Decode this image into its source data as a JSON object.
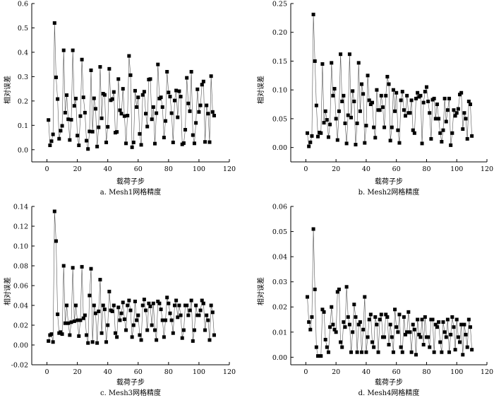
{
  "figure": {
    "xlabel": "载荷子步",
    "ylabel": "相对误差"
  },
  "chart_data": [
    {
      "type": "line",
      "title": "a. Mesh1网格精度",
      "xlabel": "载荷子步",
      "ylabel": "相对误差",
      "xlim": [
        -10,
        120
      ],
      "ylim": [
        -0.05,
        0.6
      ],
      "xticks": [
        0,
        20,
        40,
        60,
        80,
        100,
        120
      ],
      "yticks": [
        0.0,
        0.1,
        0.2,
        0.3,
        0.4,
        0.5,
        0.6
      ],
      "ytick_labels": [
        "0.0",
        "0.1",
        "0.2",
        "0.3",
        "0.4",
        "0.5",
        "0.6"
      ],
      "series": [
        {
          "name": "Mesh1",
          "x": [
            1,
            2,
            3,
            4,
            5,
            6,
            7,
            8,
            9,
            10,
            11,
            12,
            13,
            14,
            15,
            16,
            17,
            18,
            19,
            20,
            21,
            22,
            23,
            24,
            25,
            26,
            27,
            28,
            29,
            30,
            31,
            32,
            33,
            34,
            35,
            36,
            37,
            38,
            39,
            40,
            41,
            42,
            43,
            44,
            45,
            46,
            47,
            48,
            49,
            50,
            51,
            52,
            53,
            54,
            55,
            56,
            57,
            58,
            59,
            60,
            61,
            62,
            63,
            64,
            65,
            66,
            67,
            68,
            69,
            70,
            71,
            72,
            73,
            74,
            75,
            76,
            77,
            78,
            79,
            80,
            81,
            82,
            83,
            84,
            85,
            86,
            87,
            88,
            89,
            90,
            91,
            92,
            93,
            94,
            95,
            96,
            97,
            98,
            99,
            100,
            101,
            102,
            103,
            104,
            105,
            106,
            107,
            108,
            109,
            110
          ],
          "values": [
            0.122,
            0.018,
            0.035,
            0.063,
            0.52,
            0.297,
            0.208,
            0.045,
            0.078,
            0.098,
            0.408,
            0.152,
            0.224,
            0.125,
            0.04,
            0.123,
            0.408,
            0.18,
            0.21,
            0.058,
            0.018,
            0.138,
            0.37,
            0.215,
            0.152,
            0.037,
            0.003,
            0.075,
            0.326,
            0.074,
            0.211,
            0.168,
            0.013,
            0.092,
            0.34,
            0.129,
            0.23,
            0.225,
            0.03,
            0.094,
            0.332,
            0.203,
            0.208,
            0.237,
            0.07,
            0.073,
            0.29,
            0.162,
            0.148,
            0.25,
            0.138,
            0.026,
            0.14,
            0.385,
            0.306,
            0.01,
            0.03,
            0.242,
            0.175,
            0.215,
            0.065,
            0.02,
            0.225,
            0.238,
            0.148,
            0.095,
            0.288,
            0.29,
            0.125,
            0.175,
            0.025,
            0.15,
            0.35,
            0.21,
            0.215,
            0.175,
            0.05,
            0.118,
            0.32,
            0.235,
            0.218,
            0.15,
            0.03,
            0.202,
            0.243,
            0.133,
            0.24,
            0.218,
            0.022,
            0.027,
            0.082,
            0.295,
            0.19,
            0.158,
            0.32,
            0.06,
            0.026,
            0.11,
            0.248,
            0.155,
            0.182,
            0.267,
            0.28,
            0.032,
            0.182,
            0.148,
            0.031,
            0.302,
            0.155,
            0.14
          ]
        }
      ]
    },
    {
      "type": "line",
      "title": "b. Mesh2网格精度",
      "xlabel": "载荷子步",
      "ylabel": "相对误差",
      "xlim": [
        -10,
        120
      ],
      "ylim": [
        -0.025,
        0.25
      ],
      "xticks": [
        0,
        20,
        40,
        60,
        80,
        100,
        120
      ],
      "yticks": [
        0.0,
        0.05,
        0.1,
        0.15,
        0.2,
        0.25
      ],
      "ytick_labels": [
        "0.00",
        "0.05",
        "0.10",
        "0.15",
        "0.20",
        "0.25"
      ],
      "series": [
        {
          "name": "Mesh2",
          "x": [
            1,
            2,
            3,
            4,
            5,
            6,
            7,
            8,
            9,
            10,
            11,
            12,
            13,
            14,
            15,
            16,
            17,
            18,
            19,
            20,
            21,
            22,
            23,
            24,
            25,
            26,
            27,
            28,
            29,
            30,
            31,
            32,
            33,
            34,
            35,
            36,
            37,
            38,
            39,
            40,
            41,
            42,
            43,
            44,
            45,
            46,
            47,
            48,
            49,
            50,
            51,
            52,
            53,
            54,
            55,
            56,
            57,
            58,
            59,
            60,
            61,
            62,
            63,
            64,
            65,
            66,
            67,
            68,
            69,
            70,
            71,
            72,
            73,
            74,
            75,
            76,
            77,
            78,
            79,
            80,
            81,
            82,
            83,
            84,
            85,
            86,
            87,
            88,
            89,
            90,
            91,
            92,
            93,
            94,
            95,
            96,
            97,
            98,
            99,
            100,
            101,
            102,
            103,
            104,
            105,
            106,
            107,
            108,
            109,
            110
          ],
          "values": [
            0.025,
            0.002,
            0.009,
            0.02,
            0.231,
            0.15,
            0.073,
            0.019,
            0.026,
            0.025,
            0.145,
            0.043,
            0.063,
            0.048,
            0.018,
            0.04,
            0.147,
            0.09,
            0.102,
            0.05,
            0.013,
            0.063,
            0.162,
            0.08,
            0.09,
            0.042,
            0.007,
            0.056,
            0.162,
            0.052,
            0.098,
            0.08,
            0.005,
            0.042,
            0.147,
            0.063,
            0.11,
            0.093,
            0.008,
            0.038,
            0.125,
            0.082,
            0.075,
            0.078,
            0.035,
            0.017,
            0.1,
            0.065,
            0.065,
            0.09,
            0.07,
            0.035,
            0.09,
            0.123,
            0.11,
            0.012,
            0.035,
            0.1,
            0.063,
            0.095,
            0.03,
            0.008,
            0.082,
            0.097,
            0.065,
            0.055,
            0.09,
            0.06,
            0.06,
            0.082,
            0.03,
            0.025,
            0.085,
            0.095,
            0.088,
            0.09,
            0.007,
            0.078,
            0.097,
            0.105,
            0.08,
            0.06,
            0.015,
            0.083,
            0.085,
            0.05,
            0.075,
            0.05,
            0.025,
            0.01,
            0.03,
            0.085,
            0.045,
            0.065,
            0.085,
            0.004,
            0.025,
            0.065,
            0.055,
            0.06,
            0.067,
            0.092,
            0.095,
            0.032,
            0.06,
            0.05,
            0.015,
            0.08,
            0.075,
            0.02
          ]
        }
      ]
    },
    {
      "type": "line",
      "title": "c. Mesh3网格精度",
      "xlabel": "载荷子步",
      "ylabel": "相对误差",
      "xlim": [
        -10,
        120
      ],
      "ylim": [
        -0.02,
        0.14
      ],
      "xticks": [
        0,
        20,
        40,
        60,
        80,
        100,
        120
      ],
      "yticks": [
        -0.02,
        0.0,
        0.02,
        0.04,
        0.06,
        0.08,
        0.1,
        0.12,
        0.14
      ],
      "ytick_labels": [
        "-0.02",
        "0.00",
        "0.02",
        "0.04",
        "0.06",
        "0.08",
        "0.10",
        "0.12",
        "0.14"
      ],
      "series": [
        {
          "name": "Mesh3",
          "x": [
            1,
            2,
            3,
            4,
            5,
            6,
            7,
            8,
            9,
            10,
            11,
            12,
            13,
            14,
            15,
            16,
            17,
            18,
            19,
            20,
            21,
            22,
            23,
            24,
            25,
            26,
            27,
            28,
            29,
            30,
            31,
            32,
            33,
            34,
            35,
            36,
            37,
            38,
            39,
            40,
            41,
            42,
            43,
            44,
            45,
            46,
            47,
            48,
            49,
            50,
            51,
            52,
            53,
            54,
            55,
            56,
            57,
            58,
            59,
            60,
            61,
            62,
            63,
            64,
            65,
            66,
            67,
            68,
            69,
            70,
            71,
            72,
            73,
            74,
            75,
            76,
            77,
            78,
            79,
            80,
            81,
            82,
            83,
            84,
            85,
            86,
            87,
            88,
            89,
            90,
            91,
            92,
            93,
            94,
            95,
            96,
            97,
            98,
            99,
            100,
            101,
            102,
            103,
            104,
            105,
            106,
            107,
            108,
            109,
            110
          ],
          "values": [
            0.004,
            0.01,
            0.011,
            0.003,
            0.135,
            0.105,
            0.031,
            0.012,
            0.013,
            0.011,
            0.08,
            0.022,
            0.04,
            0.022,
            0.01,
            0.023,
            0.078,
            0.024,
            0.04,
            0.025,
            0.009,
            0.025,
            0.079,
            0.027,
            0.03,
            0.01,
            0.002,
            0.05,
            0.077,
            0.003,
            0.04,
            0.032,
            0.002,
            0.034,
            0.066,
            0.012,
            0.04,
            0.036,
            0.003,
            0.02,
            0.054,
            0.035,
            0.034,
            0.04,
            0.012,
            0.008,
            0.038,
            0.025,
            0.032,
            0.043,
            0.026,
            0.015,
            0.04,
            0.045,
            0.035,
            0.008,
            0.02,
            0.044,
            0.025,
            0.03,
            0.01,
            0.005,
            0.04,
            0.046,
            0.035,
            0.015,
            0.042,
            0.039,
            0.02,
            0.042,
            0.015,
            0.005,
            0.044,
            0.042,
            0.036,
            0.025,
            0.008,
            0.025,
            0.048,
            0.042,
            0.032,
            0.025,
            0.012,
            0.04,
            0.045,
            0.028,
            0.04,
            0.03,
            0.007,
            0.015,
            0.04,
            0.04,
            0.03,
            0.035,
            0.045,
            0.004,
            0.015,
            0.04,
            0.03,
            0.03,
            0.035,
            0.045,
            0.042,
            0.015,
            0.03,
            0.025,
            0.005,
            0.04,
            0.033,
            0.01
          ]
        }
      ]
    },
    {
      "type": "line",
      "title": "d. Mesh4网格精度",
      "xlabel": "载荷子步",
      "ylabel": "相对误差",
      "xlim": [
        -10,
        120
      ],
      "ylim": [
        -0.003,
        0.06
      ],
      "xticks": [
        0,
        20,
        40,
        60,
        80,
        100,
        120
      ],
      "yticks": [
        0.0,
        0.01,
        0.02,
        0.03,
        0.04,
        0.05,
        0.06
      ],
      "ytick_labels": [
        "0.00",
        "0.01",
        "0.02",
        "0.03",
        "0.04",
        "0.05",
        "0.06"
      ],
      "series": [
        {
          "name": "Mesh4",
          "x": [
            1,
            2,
            3,
            4,
            5,
            6,
            7,
            8,
            9,
            10,
            11,
            12,
            13,
            14,
            15,
            16,
            17,
            18,
            19,
            20,
            21,
            22,
            23,
            24,
            25,
            26,
            27,
            28,
            29,
            30,
            31,
            32,
            33,
            34,
            35,
            36,
            37,
            38,
            39,
            40,
            41,
            42,
            43,
            44,
            45,
            46,
            47,
            48,
            49,
            50,
            51,
            52,
            53,
            54,
            55,
            56,
            57,
            58,
            59,
            60,
            61,
            62,
            63,
            64,
            65,
            66,
            67,
            68,
            69,
            70,
            71,
            72,
            73,
            74,
            75,
            76,
            77,
            78,
            79,
            80,
            81,
            82,
            83,
            84,
            85,
            86,
            87,
            88,
            89,
            90,
            91,
            92,
            93,
            94,
            95,
            96,
            97,
            98,
            99,
            100,
            101,
            102,
            103,
            104,
            105,
            106,
            107,
            108,
            109,
            110
          ],
          "values": [
            0.024,
            0.014,
            0.011,
            0.016,
            0.051,
            0.027,
            0.004,
            0.0005,
            0.0005,
            0.0005,
            0.019,
            0.018,
            0.007,
            0.004,
            0.002,
            0.012,
            0.02,
            0.013,
            0.011,
            0.01,
            0.026,
            0.027,
            0.006,
            0.004,
            0.014,
            0.012,
            0.028,
            0.016,
            0.013,
            0.002,
            0.01,
            0.021,
            0.016,
            0.002,
            0.013,
            0.014,
            0.002,
            0.011,
            0.024,
            0.002,
            0.008,
            0.015,
            0.017,
            0.006,
            0.004,
            0.016,
            0.013,
            0.002,
            0.015,
            0.017,
            0.008,
            0.008,
            0.017,
            0.016,
            0.005,
            0.013,
            0.008,
            0.002,
            0.019,
            0.012,
            0.01,
            0.017,
            0.004,
            0.002,
            0.016,
            0.009,
            0.01,
            0.018,
            0.01,
            0.002,
            0.013,
            0.011,
            0.001,
            0.015,
            0.009,
            0.008,
            0.015,
            0.005,
            0.016,
            0.008,
            0.008,
            0.004,
            0.015,
            0.015,
            0.002,
            0.013,
            0.012,
            0.014,
            0.006,
            0.002,
            0.014,
            0.01,
            0.008,
            0.015,
            0.002,
            0.009,
            0.016,
            0.012,
            0.003,
            0.015,
            0.008,
            0.006,
            0.013,
            0.001,
            0.013,
            0.009,
            0.004,
            0.015,
            0.012,
            0.003
          ]
        }
      ]
    }
  ]
}
